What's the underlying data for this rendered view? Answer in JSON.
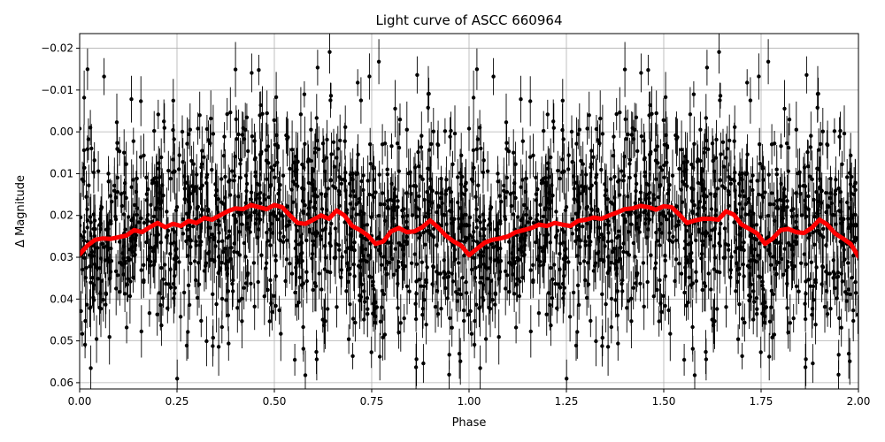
{
  "chart_data": {
    "type": "scatter",
    "title": "Light curve of ASCC 660964",
    "xlabel": "Phase",
    "ylabel": "Δ Magnitude",
    "xlim": [
      0.0,
      2.0
    ],
    "ylim": [
      0.0615,
      -0.0235
    ],
    "y_inverted": true,
    "grid": true,
    "x_ticks": [
      0.0,
      0.25,
      0.5,
      0.75,
      1.0,
      1.25,
      1.5,
      1.75,
      2.0
    ],
    "x_tick_labels": [
      "0.00",
      "0.25",
      "0.50",
      "0.75",
      "1.00",
      "1.25",
      "1.50",
      "1.75",
      "2.00"
    ],
    "y_ticks": [
      -0.02,
      -0.01,
      0.0,
      0.01,
      0.02,
      0.03,
      0.04,
      0.05,
      0.06
    ],
    "y_tick_labels": [
      "−0.02",
      "−0.01",
      "0.00",
      "0.01",
      "0.02",
      "0.03",
      "0.04",
      "0.05",
      "0.06"
    ],
    "series": [
      {
        "role": "observations",
        "marker": "point",
        "error_bars": true,
        "color": "#000000",
        "phase_repeat": 1.0,
        "points_per_cycle": 1200,
        "scatter_sigma": 0.012,
        "follows": "binned"
      },
      {
        "role": "binned",
        "marker": "line",
        "color": "#ff0000",
        "x": [
          0.0,
          0.02,
          0.04,
          0.06,
          0.08,
          0.1,
          0.12,
          0.14,
          0.16,
          0.18,
          0.2,
          0.22,
          0.24,
          0.26,
          0.28,
          0.3,
          0.32,
          0.34,
          0.36,
          0.38,
          0.4,
          0.42,
          0.44,
          0.46,
          0.48,
          0.5,
          0.52,
          0.54,
          0.56,
          0.58,
          0.6,
          0.62,
          0.64,
          0.66,
          0.68,
          0.7,
          0.72,
          0.74,
          0.76,
          0.78,
          0.8,
          0.82,
          0.84,
          0.86,
          0.88,
          0.9,
          0.92,
          0.94,
          0.96,
          0.98,
          1.0,
          1.02,
          1.04,
          1.06,
          1.08,
          1.1,
          1.12,
          1.14,
          1.16,
          1.18,
          1.2,
          1.22,
          1.24,
          1.26,
          1.28,
          1.3,
          1.32,
          1.34,
          1.36,
          1.38,
          1.4,
          1.42,
          1.44,
          1.46,
          1.48,
          1.5,
          1.52,
          1.54,
          1.56,
          1.58,
          1.6,
          1.62,
          1.64,
          1.66,
          1.68,
          1.7,
          1.72,
          1.74,
          1.76,
          1.78,
          1.8,
          1.82,
          1.84,
          1.86,
          1.88,
          1.9,
          1.92,
          1.94,
          1.96,
          1.98,
          2.0
        ],
        "y": [
          0.0293,
          0.0272,
          0.0258,
          0.0255,
          0.0256,
          0.0252,
          0.0248,
          0.0235,
          0.024,
          0.0228,
          0.0218,
          0.0228,
          0.022,
          0.0225,
          0.0213,
          0.0218,
          0.0206,
          0.021,
          0.02,
          0.019,
          0.0183,
          0.0185,
          0.0175,
          0.018,
          0.0185,
          0.0175,
          0.018,
          0.02,
          0.0218,
          0.022,
          0.021,
          0.02,
          0.0208,
          0.0188,
          0.02,
          0.0225,
          0.0235,
          0.0248,
          0.0268,
          0.0262,
          0.0238,
          0.023,
          0.024,
          0.0238,
          0.0228,
          0.0212,
          0.0228,
          0.0248,
          0.0262,
          0.0272,
          0.0295,
          0.028,
          0.0265,
          0.0258,
          0.0255,
          0.025,
          0.024,
          0.0235,
          0.023,
          0.0222,
          0.0225,
          0.0218,
          0.0222,
          0.0225,
          0.0213,
          0.021,
          0.0205,
          0.0208,
          0.02,
          0.0193,
          0.0185,
          0.0183,
          0.0177,
          0.018,
          0.0186,
          0.0178,
          0.018,
          0.0198,
          0.0218,
          0.0212,
          0.0208,
          0.0208,
          0.021,
          0.019,
          0.0198,
          0.0222,
          0.0232,
          0.0243,
          0.0268,
          0.0255,
          0.0235,
          0.0232,
          0.024,
          0.0242,
          0.023,
          0.021,
          0.0222,
          0.0243,
          0.0255,
          0.0268,
          0.0298
        ]
      }
    ]
  }
}
